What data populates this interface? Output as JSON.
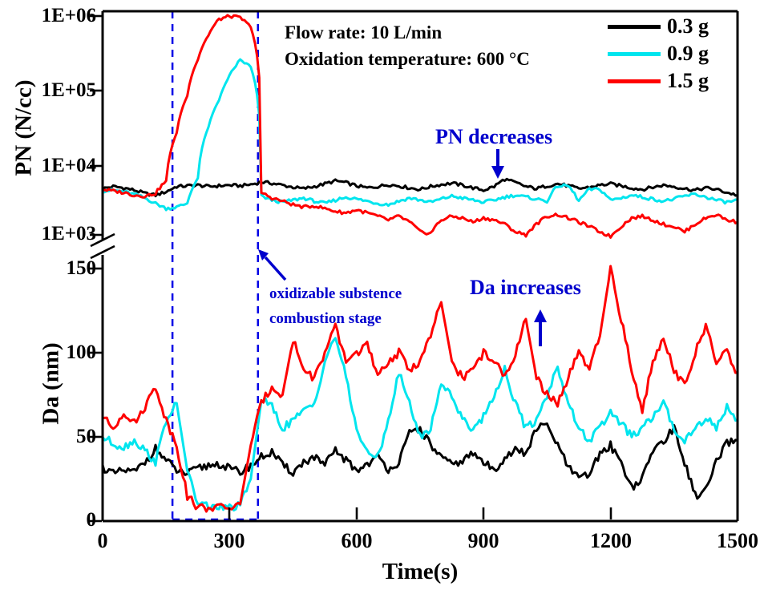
{
  "colors": {
    "series_03g": "#000000",
    "series_09g": "#00E5EE",
    "series_15g": "#FF0000",
    "annotation": "#0000CD",
    "stage_line": "#0000E6",
    "axis": "#000000"
  },
  "legend": {
    "items": [
      {
        "label": "0.3 g",
        "color": "#000000"
      },
      {
        "label": "0.9 g",
        "color": "#00E5EE"
      },
      {
        "label": "1.5 g",
        "color": "#FF0000"
      }
    ]
  },
  "annotations": {
    "flow_rate": "Flow rate: 10 L/min",
    "oxidation_temp": "Oxidation temperature: 600 °C",
    "pn_decreases": "PN decreases",
    "da_increases": "Da increases",
    "stage_line1": "oxidizable substence",
    "stage_line2": "combustion stage"
  },
  "chart_data": {
    "type": "line",
    "x": {
      "label": "Time(s)",
      "range": [
        0,
        1500
      ],
      "tick_labels": [
        "0",
        "300",
        "600",
        "900",
        "1200",
        "1500"
      ]
    },
    "panels": [
      {
        "id": "pn",
        "ylabel": "PN (N/cc)",
        "scale": "log",
        "range": [
          1000,
          1000000
        ],
        "tick_labels": [
          "1E+06",
          "1E+05",
          "1E+04",
          "1E+03"
        ],
        "broken_axis": true
      },
      {
        "id": "da",
        "ylabel": "Da (nm)",
        "scale": "linear",
        "range": [
          0,
          150
        ],
        "tick_labels": [
          "150",
          "100",
          "50",
          "0"
        ]
      }
    ],
    "stage": {
      "t_start": 165,
      "t_end": 367
    },
    "t_start": 0,
    "t_step": 25,
    "noise": {
      "pn_rel": 0.05,
      "da_abs": 2.4
    },
    "series": [
      {
        "name": "0.3 g",
        "color": "#000000",
        "pn": [
          4300,
          4600,
          4400,
          4100,
          3700,
          3500,
          3900,
          4600,
          4700,
          4800,
          4600,
          4700,
          4800,
          4700,
          4900,
          5300,
          5100,
          4800,
          4500,
          4300,
          4600,
          5000,
          5500,
          5200,
          4700,
          4400,
          4600,
          4900,
          4700,
          4400,
          4200,
          4600,
          4900,
          5100,
          4800,
          4400,
          4100,
          4600,
          5800,
          5200,
          4600,
          4300,
          4700,
          5000,
          4700,
          4300,
          4500,
          4800,
          5000,
          4700,
          4400,
          4200,
          4500,
          4800,
          4600,
          4300,
          4100,
          4400,
          4200,
          3800,
          3500
        ],
        "da": [
          32,
          28,
          30,
          29,
          35,
          43,
          36,
          30,
          28,
          31,
          33,
          34,
          31,
          29,
          33,
          38,
          41,
          33,
          29,
          35,
          38,
          33,
          42,
          36,
          30,
          34,
          38,
          31,
          35,
          52,
          55,
          45,
          38,
          33,
          36,
          40,
          35,
          30,
          38,
          42,
          40,
          55,
          57,
          45,
          32,
          25,
          28,
          40,
          45,
          35,
          20,
          25,
          42,
          48,
          55,
          35,
          15,
          18,
          35,
          46,
          48
        ]
      },
      {
        "name": "0.9 g",
        "color": "#00E5EE",
        "pn": [
          4000,
          4100,
          3900,
          3600,
          3200,
          2700,
          2300,
          2400,
          2700,
          6000,
          30000,
          70000,
          150000,
          250000,
          200000,
          3400,
          3000,
          2800,
          3000,
          3200,
          2900,
          2700,
          3000,
          3300,
          3100,
          2900,
          2700,
          2600,
          2900,
          3200,
          3000,
          2800,
          3100,
          3400,
          3200,
          3000,
          2800,
          3000,
          3300,
          3500,
          3300,
          3100,
          2900,
          4700,
          4700,
          2900,
          4200,
          4200,
          3000,
          3200,
          3500,
          3300,
          3100,
          2900,
          3100,
          3400,
          3600,
          3300,
          3000,
          2800,
          3000
        ],
        "da": [
          50,
          46,
          44,
          48,
          42,
          35,
          60,
          70,
          30,
          10,
          9,
          8,
          8,
          9,
          25,
          72,
          68,
          55,
          60,
          65,
          70,
          95,
          110,
          85,
          55,
          40,
          38,
          60,
          88,
          70,
          50,
          55,
          82,
          75,
          60,
          55,
          62,
          75,
          90,
          70,
          55,
          60,
          75,
          92,
          70,
          55,
          48,
          55,
          65,
          58,
          50,
          55,
          62,
          70,
          55,
          48,
          55,
          62,
          55,
          68,
          60
        ]
      },
      {
        "name": "1.5 g",
        "color": "#FF0000",
        "pn": [
          4200,
          4000,
          3800,
          3500,
          3400,
          3700,
          5500,
          25000,
          80000,
          250000,
          550000,
          900000,
          1000000,
          950000,
          700000,
          3800,
          3200,
          2900,
          2600,
          2400,
          2500,
          2300,
          2100,
          2000,
          2200,
          2000,
          1800,
          1600,
          1800,
          1500,
          1100,
          1050,
          1600,
          1800,
          1700,
          1500,
          1700,
          1600,
          1400,
          1100,
          1000,
          1400,
          1800,
          1900,
          1700,
          1500,
          1300,
          1100,
          950,
          1300,
          1700,
          1800,
          1600,
          1400,
          1300,
          1100,
          1400,
          1700,
          1900,
          1600,
          1500
        ],
        "da": [
          62,
          55,
          65,
          58,
          68,
          80,
          60,
          45,
          15,
          8,
          8,
          8,
          8,
          10,
          45,
          70,
          80,
          75,
          108,
          90,
          85,
          100,
          115,
          95,
          100,
          105,
          85,
          95,
          100,
          90,
          95,
          110,
          130,
          95,
          85,
          90,
          100,
          95,
          85,
          100,
          120,
          85,
          75,
          70,
          85,
          100,
          90,
          110,
          150,
          120,
          90,
          65,
          95,
          110,
          90,
          80,
          100,
          115,
          95,
          100,
          88
        ]
      }
    ]
  }
}
